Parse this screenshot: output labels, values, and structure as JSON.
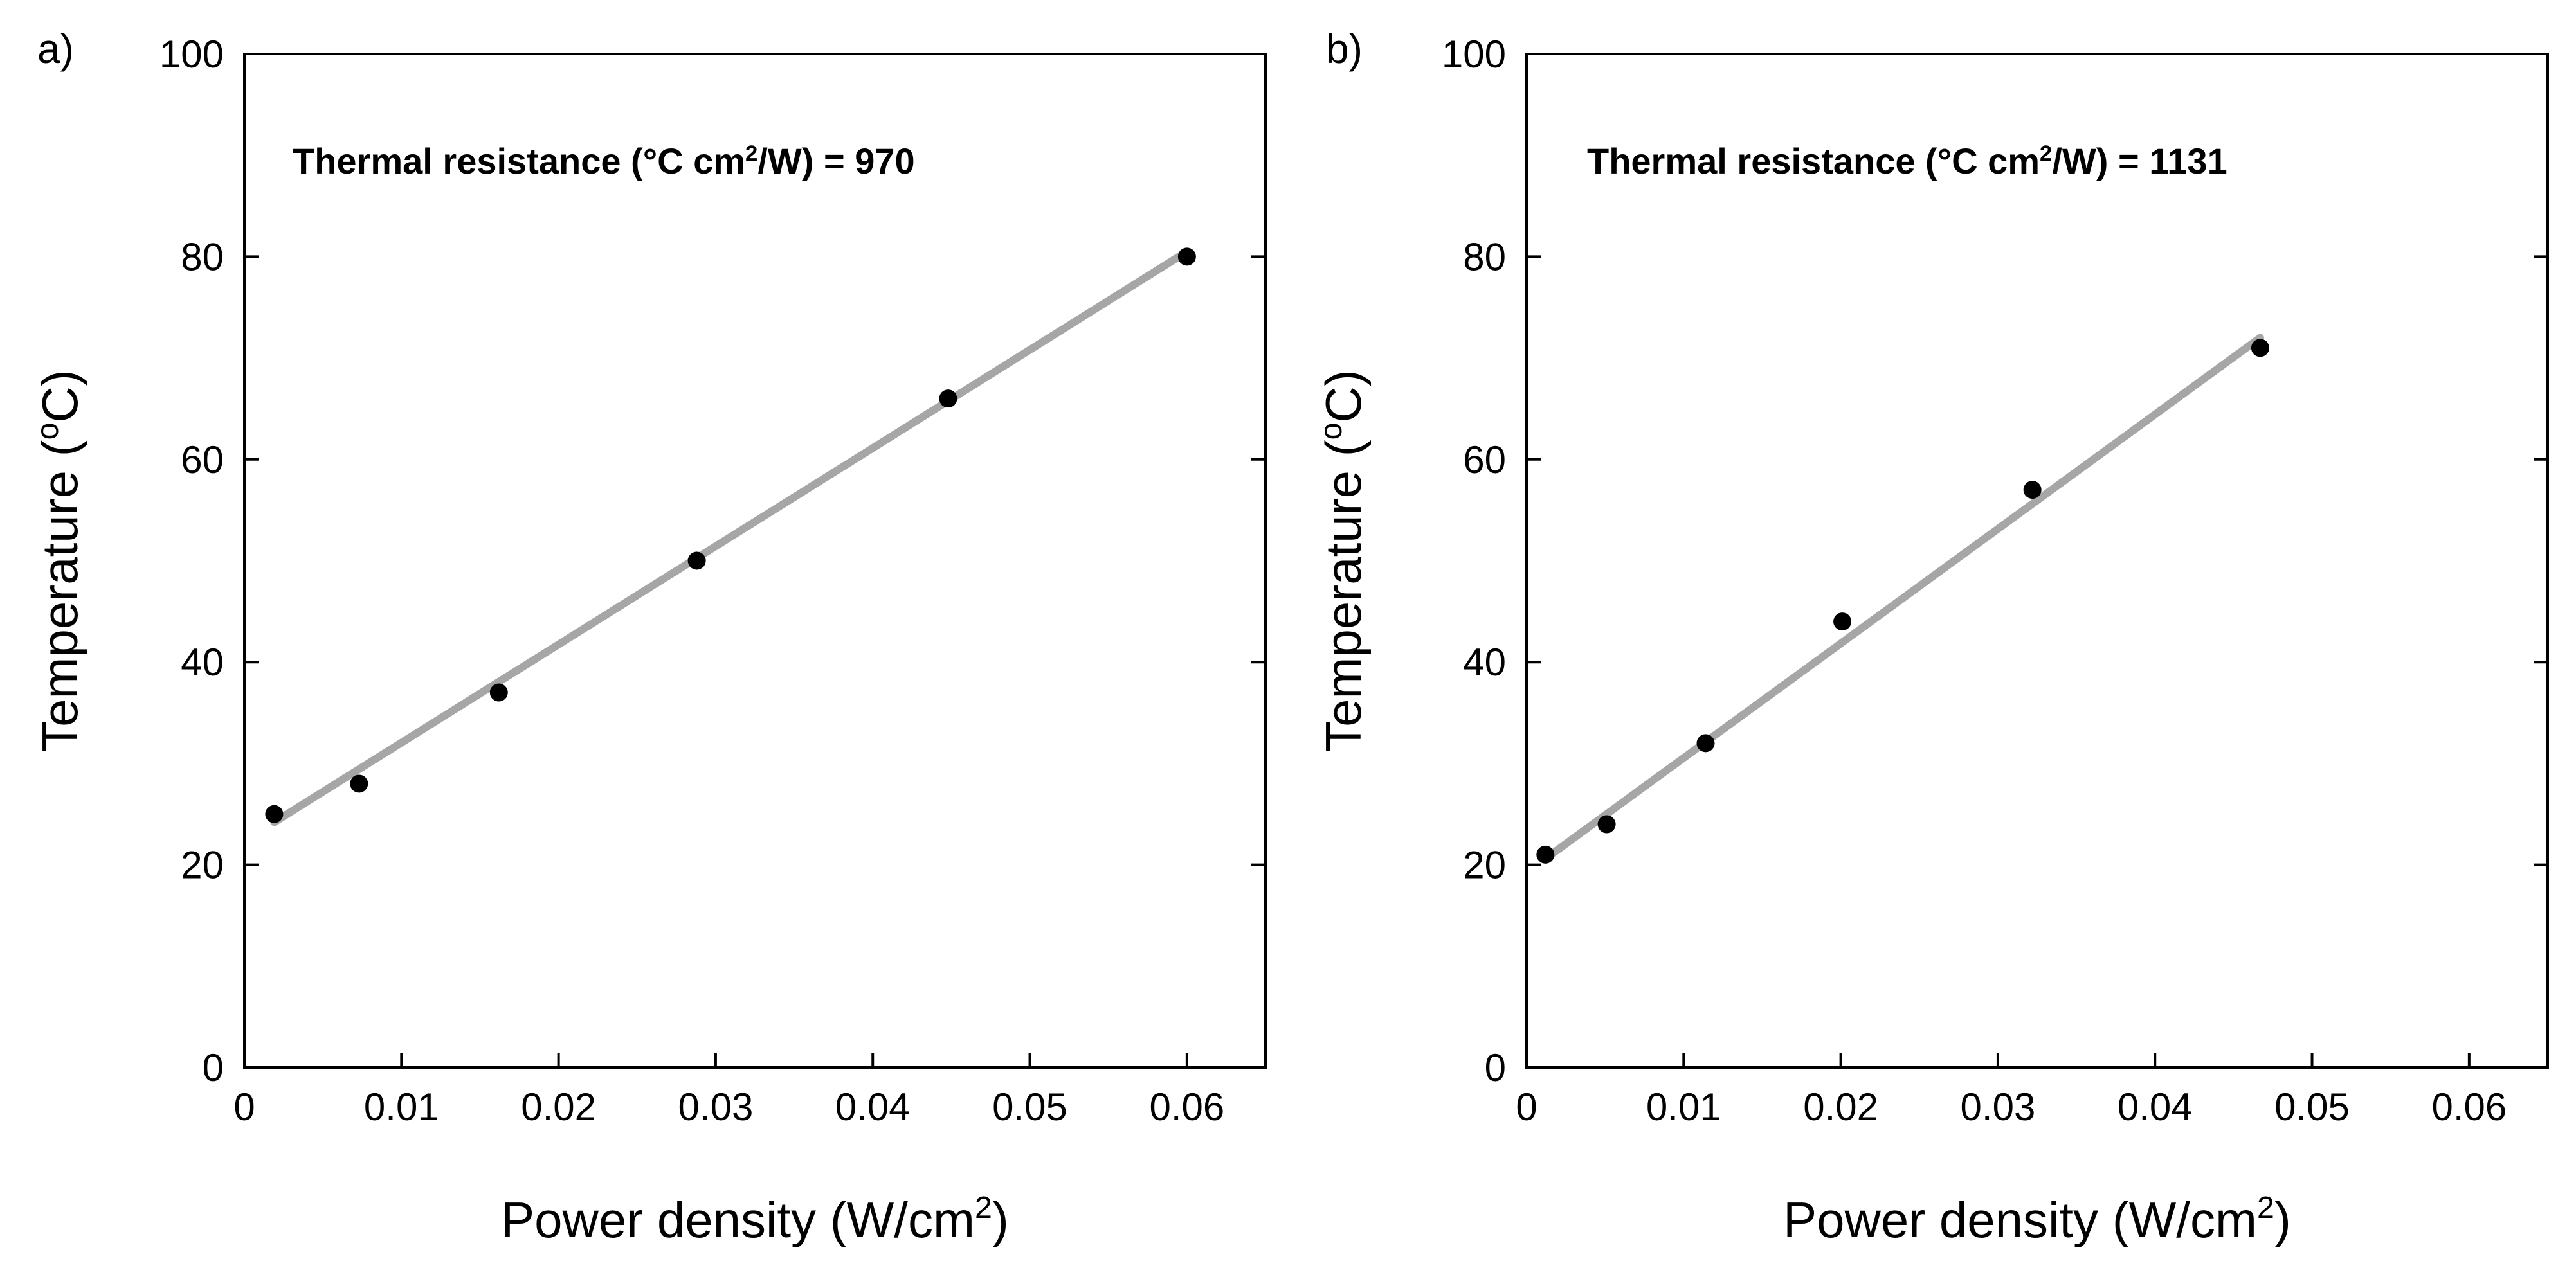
{
  "chart_data": [
    {
      "type": "scatter",
      "panel_label": "a)",
      "annotation": {
        "prefix": "Thermal resistance (°C cm",
        "superscript": "2",
        "suffix": "/W) = 970"
      },
      "xlabel": {
        "text": "Power density (W/cm",
        "superscript": "2",
        "suffix": ")"
      },
      "ylabel": {
        "text": "Temperature (",
        "superscript": "o",
        "suffix": "C)"
      },
      "xlim": [
        0,
        0.065
      ],
      "ylim": [
        0,
        100
      ],
      "xticks": [
        0,
        0.01,
        0.02,
        0.03,
        0.04,
        0.05,
        0.06
      ],
      "xtick_labels": [
        "0",
        "0.01",
        "0.02",
        "0.03",
        "0.04",
        "0.05",
        "0.06"
      ],
      "yticks": [
        0,
        20,
        40,
        60,
        80,
        100
      ],
      "ytick_labels": [
        "0",
        "20",
        "40",
        "60",
        "80",
        "100"
      ],
      "series": [
        {
          "name": "measured",
          "kind": "points",
          "x": [
            0.0019,
            0.0073,
            0.0162,
            0.0288,
            0.0448,
            0.06
          ],
          "y": [
            25,
            28,
            37,
            50,
            66,
            80
          ]
        },
        {
          "name": "linear fit",
          "kind": "line",
          "color": "#a6a6a6",
          "x": [
            0.0019,
            0.06
          ],
          "y": [
            24.2,
            80.5
          ]
        }
      ]
    },
    {
      "type": "scatter",
      "panel_label": "b)",
      "annotation": {
        "prefix": "Thermal resistance (°C cm",
        "superscript": "2",
        "suffix": "/W) = 1131"
      },
      "xlabel": {
        "text": "Power density (W/cm",
        "superscript": "2",
        "suffix": ")"
      },
      "ylabel": {
        "text": "Temperature (",
        "superscript": "o",
        "suffix": "C)"
      },
      "xlim": [
        0,
        0.065
      ],
      "ylim": [
        0,
        100
      ],
      "xticks": [
        0,
        0.01,
        0.02,
        0.03,
        0.04,
        0.05,
        0.06
      ],
      "xtick_labels": [
        "0",
        "0.01",
        "0.02",
        "0.03",
        "0.04",
        "0.05",
        "0.06"
      ],
      "yticks": [
        0,
        20,
        40,
        60,
        80,
        100
      ],
      "ytick_labels": [
        "0",
        "20",
        "40",
        "60",
        "80",
        "100"
      ],
      "series": [
        {
          "name": "measured",
          "kind": "points",
          "x": [
            0.0012,
            0.0051,
            0.0114,
            0.0201,
            0.0322,
            0.0467
          ],
          "y": [
            21,
            24,
            32,
            44,
            57,
            71
          ]
        },
        {
          "name": "linear fit",
          "kind": "line",
          "color": "#a6a6a6",
          "x": [
            0.0012,
            0.0467
          ],
          "y": [
            20.6,
            72
          ]
        }
      ]
    }
  ]
}
